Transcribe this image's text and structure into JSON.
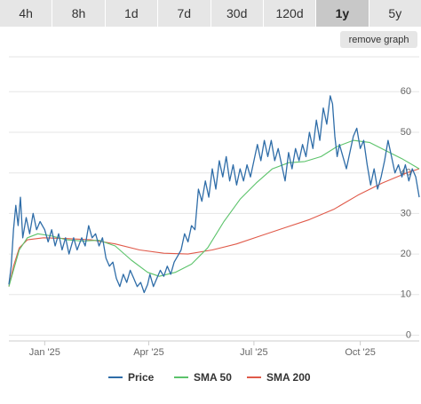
{
  "tabs": [
    {
      "label": "4h",
      "active": false
    },
    {
      "label": "8h",
      "active": false
    },
    {
      "label": "1d",
      "active": false
    },
    {
      "label": "7d",
      "active": false
    },
    {
      "label": "30d",
      "active": false
    },
    {
      "label": "120d",
      "active": false
    },
    {
      "label": "1y",
      "active": true
    },
    {
      "label": "5y",
      "active": false
    }
  ],
  "remove_graph_label": "remove graph",
  "chart_data": {
    "type": "line",
    "title": "",
    "xlabel": "",
    "ylabel": "",
    "ylim": [
      0,
      63
    ],
    "grid": true,
    "legend": "bottom",
    "y_ticks": [
      "0",
      "10",
      "20",
      "30",
      "40",
      "50",
      "60"
    ],
    "x_ticks": [
      "Jan '25",
      "Apr '25",
      "Jul '25",
      "Oct '25"
    ],
    "series": [
      {
        "name": "Price",
        "color": "#2f6da8",
        "points": [
          [
            "2024-12-01",
            12.5
          ],
          [
            "2024-12-03",
            17
          ],
          [
            "2024-12-05",
            26
          ],
          [
            "2024-12-07",
            32
          ],
          [
            "2024-12-09",
            27
          ],
          [
            "2024-12-11",
            34
          ],
          [
            "2024-12-13",
            24
          ],
          [
            "2024-12-16",
            29
          ],
          [
            "2024-12-19",
            25
          ],
          [
            "2024-12-22",
            30
          ],
          [
            "2024-12-25",
            26
          ],
          [
            "2024-12-28",
            28
          ],
          [
            "2025-01-01",
            26
          ],
          [
            "2025-01-04",
            23
          ],
          [
            "2025-01-07",
            26
          ],
          [
            "2025-01-10",
            22
          ],
          [
            "2025-01-13",
            25
          ],
          [
            "2025-01-16",
            21
          ],
          [
            "2025-01-19",
            24
          ],
          [
            "2025-01-22",
            20
          ],
          [
            "2025-01-26",
            24
          ],
          [
            "2025-01-29",
            21
          ],
          [
            "2025-02-02",
            24
          ],
          [
            "2025-02-05",
            22
          ],
          [
            "2025-02-08",
            27
          ],
          [
            "2025-02-11",
            24
          ],
          [
            "2025-02-14",
            25
          ],
          [
            "2025-02-17",
            22
          ],
          [
            "2025-02-20",
            24
          ],
          [
            "2025-02-23",
            19
          ],
          [
            "2025-02-26",
            17
          ],
          [
            "2025-03-01",
            18
          ],
          [
            "2025-03-04",
            14
          ],
          [
            "2025-03-07",
            12
          ],
          [
            "2025-03-10",
            15
          ],
          [
            "2025-03-13",
            13
          ],
          [
            "2025-03-16",
            16
          ],
          [
            "2025-03-19",
            14
          ],
          [
            "2025-03-22",
            12
          ],
          [
            "2025-03-25",
            13
          ],
          [
            "2025-03-28",
            10.5
          ],
          [
            "2025-03-31",
            12.5
          ],
          [
            "2025-04-02",
            15
          ],
          [
            "2025-04-05",
            12
          ],
          [
            "2025-04-08",
            14
          ],
          [
            "2025-04-11",
            16
          ],
          [
            "2025-04-14",
            14.5
          ],
          [
            "2025-04-17",
            17
          ],
          [
            "2025-04-20",
            15
          ],
          [
            "2025-04-23",
            18
          ],
          [
            "2025-04-26",
            19.5
          ],
          [
            "2025-04-29",
            21
          ],
          [
            "2025-05-02",
            25
          ],
          [
            "2025-05-05",
            23
          ],
          [
            "2025-05-08",
            27
          ],
          [
            "2025-05-11",
            26
          ],
          [
            "2025-05-14",
            36
          ],
          [
            "2025-05-17",
            33
          ],
          [
            "2025-05-20",
            38
          ],
          [
            "2025-05-23",
            34
          ],
          [
            "2025-05-26",
            41
          ],
          [
            "2025-05-29",
            36
          ],
          [
            "2025-06-01",
            43
          ],
          [
            "2025-06-04",
            39
          ],
          [
            "2025-06-07",
            44
          ],
          [
            "2025-06-10",
            38
          ],
          [
            "2025-06-13",
            42
          ],
          [
            "2025-06-16",
            37
          ],
          [
            "2025-06-19",
            41
          ],
          [
            "2025-06-22",
            38
          ],
          [
            "2025-06-25",
            42
          ],
          [
            "2025-06-28",
            39
          ],
          [
            "2025-07-01",
            43
          ],
          [
            "2025-07-04",
            47
          ],
          [
            "2025-07-07",
            43
          ],
          [
            "2025-07-10",
            48
          ],
          [
            "2025-07-13",
            44
          ],
          [
            "2025-07-16",
            48
          ],
          [
            "2025-07-19",
            43
          ],
          [
            "2025-07-22",
            46
          ],
          [
            "2025-07-25",
            42
          ],
          [
            "2025-07-28",
            38
          ],
          [
            "2025-07-31",
            45
          ],
          [
            "2025-08-03",
            41
          ],
          [
            "2025-08-06",
            46
          ],
          [
            "2025-08-09",
            43
          ],
          [
            "2025-08-12",
            47
          ],
          [
            "2025-08-15",
            44
          ],
          [
            "2025-08-18",
            50
          ],
          [
            "2025-08-21",
            46
          ],
          [
            "2025-08-24",
            53
          ],
          [
            "2025-08-27",
            48
          ],
          [
            "2025-08-30",
            56
          ],
          [
            "2025-09-02",
            52
          ],
          [
            "2025-09-05",
            59
          ],
          [
            "2025-09-07",
            57
          ],
          [
            "2025-09-09",
            49
          ],
          [
            "2025-09-11",
            44
          ],
          [
            "2025-09-13",
            47
          ],
          [
            "2025-09-16",
            44
          ],
          [
            "2025-09-19",
            41
          ],
          [
            "2025-09-22",
            45
          ],
          [
            "2025-09-25",
            49
          ],
          [
            "2025-09-28",
            51
          ],
          [
            "2025-10-01",
            46
          ],
          [
            "2025-10-04",
            48
          ],
          [
            "2025-10-07",
            42
          ],
          [
            "2025-10-10",
            37
          ],
          [
            "2025-10-13",
            41
          ],
          [
            "2025-10-16",
            36
          ],
          [
            "2025-10-19",
            39
          ],
          [
            "2025-10-22",
            43
          ],
          [
            "2025-10-25",
            48
          ],
          [
            "2025-10-28",
            44
          ],
          [
            "2025-10-31",
            40
          ],
          [
            "2025-11-03",
            42
          ],
          [
            "2025-11-06",
            39
          ],
          [
            "2025-11-09",
            42
          ],
          [
            "2025-11-12",
            38
          ],
          [
            "2025-11-15",
            41
          ],
          [
            "2025-11-18",
            39
          ],
          [
            "2025-11-21",
            34
          ]
        ]
      },
      {
        "name": "SMA 50",
        "color": "#5cc36b",
        "points": [
          [
            "2024-12-01",
            12
          ],
          [
            "2024-12-05",
            16
          ],
          [
            "2024-12-10",
            21
          ],
          [
            "2024-12-17",
            24
          ],
          [
            "2024-12-26",
            25
          ],
          [
            "2025-01-06",
            24.5
          ],
          [
            "2025-01-20",
            23.5
          ],
          [
            "2025-02-03",
            23.2
          ],
          [
            "2025-02-17",
            23.4
          ],
          [
            "2025-03-03",
            22
          ],
          [
            "2025-03-17",
            18.5
          ],
          [
            "2025-03-31",
            15.5
          ],
          [
            "2025-04-10",
            14.5
          ],
          [
            "2025-04-24",
            15.5
          ],
          [
            "2025-05-08",
            17.5
          ],
          [
            "2025-05-22",
            21.5
          ],
          [
            "2025-06-05",
            28
          ],
          [
            "2025-06-19",
            33.5
          ],
          [
            "2025-07-03",
            37.5
          ],
          [
            "2025-07-17",
            41
          ],
          [
            "2025-07-31",
            42.5
          ],
          [
            "2025-08-14",
            42.8
          ],
          [
            "2025-08-28",
            44
          ],
          [
            "2025-09-11",
            46.5
          ],
          [
            "2025-09-25",
            48
          ],
          [
            "2025-10-09",
            47.5
          ],
          [
            "2025-10-23",
            45.5
          ],
          [
            "2025-11-06",
            43.5
          ],
          [
            "2025-11-21",
            41
          ]
        ]
      },
      {
        "name": "SMA 200",
        "color": "#e05a4a",
        "points": [
          [
            "2024-12-01",
            12
          ],
          [
            "2024-12-05",
            17
          ],
          [
            "2024-12-10",
            21.5
          ],
          [
            "2024-12-17",
            23.5
          ],
          [
            "2024-12-31",
            24
          ],
          [
            "2025-01-20",
            23.8
          ],
          [
            "2025-02-10",
            23.5
          ],
          [
            "2025-03-03",
            22.5
          ],
          [
            "2025-03-24",
            21
          ],
          [
            "2025-04-14",
            20.2
          ],
          [
            "2025-05-05",
            20
          ],
          [
            "2025-05-26",
            21
          ],
          [
            "2025-06-16",
            22.5
          ],
          [
            "2025-07-07",
            24.5
          ],
          [
            "2025-07-28",
            26.5
          ],
          [
            "2025-08-18",
            28.5
          ],
          [
            "2025-09-08",
            31
          ],
          [
            "2025-09-29",
            34.5
          ],
          [
            "2025-10-20",
            37.5
          ],
          [
            "2025-11-10",
            40
          ],
          [
            "2025-11-21",
            41
          ]
        ]
      }
    ]
  }
}
